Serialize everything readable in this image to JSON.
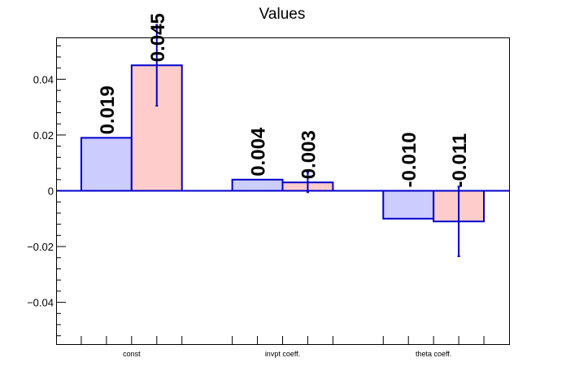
{
  "chart_data": {
    "type": "bar",
    "title": "Values",
    "xlabel": "",
    "ylabel": "",
    "categories": [
      "const",
      "invpt coeff.",
      "theta coeff."
    ],
    "ylim": [
      -0.055,
      0.055
    ],
    "yticks": [
      "0.04",
      "0.02",
      "0",
      "−0.02",
      "−0.04"
    ],
    "ytick_values": [
      0.04,
      0.02,
      0,
      -0.02,
      -0.04
    ],
    "grid": false,
    "legend": "none",
    "series": [
      {
        "values": [
          0.019,
          0.004,
          -0.01
        ],
        "labels": [
          "0.019",
          "0.004",
          "-0.010"
        ],
        "errors": [
          null,
          null,
          null
        ],
        "fill": "#ccccff",
        "stroke": "#0000cc"
      },
      {
        "values": [
          0.045,
          0.003,
          -0.011
        ],
        "labels": [
          "0.045",
          "0.003",
          "-0.011"
        ],
        "errors": [
          0.0145,
          0.0035,
          0.0125
        ],
        "fill": "#ffcccc",
        "stroke": "#0000cc"
      }
    ]
  }
}
